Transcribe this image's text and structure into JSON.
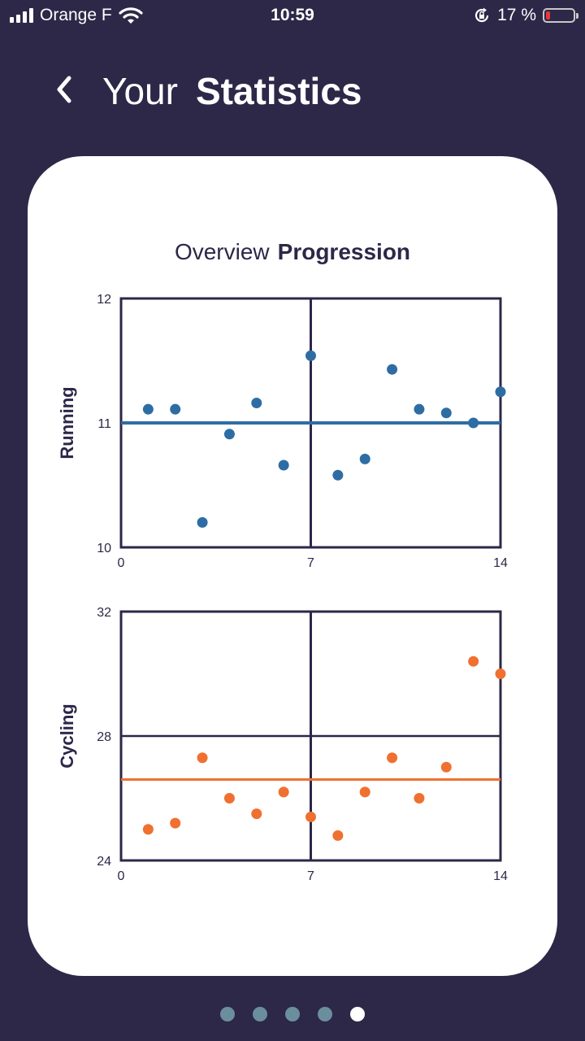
{
  "status_bar": {
    "carrier": "Orange F",
    "time": "10:59",
    "battery": "17 %",
    "battery_level": 0.17,
    "battery_color": "#e53935"
  },
  "header": {
    "title_light": "Your",
    "title_bold": "Statistics"
  },
  "card": {
    "title_light": "Overview",
    "title_bold": "Progression"
  },
  "pager": {
    "count": 5,
    "active_index": 4
  },
  "chart_data": [
    {
      "type": "scatter",
      "ylabel": "Running",
      "color": "#2e6da4",
      "xlim": [
        0,
        14
      ],
      "ylim": [
        10,
        12
      ],
      "xticks": [
        "0",
        "7",
        "14"
      ],
      "yticks": [
        "10",
        "11",
        "12"
      ],
      "reference_line": 11,
      "x": [
        1,
        2,
        3,
        4,
        5,
        6,
        7,
        8,
        9,
        10,
        11,
        12,
        13,
        14
      ],
      "y": [
        11.11,
        11.11,
        10.2,
        10.91,
        11.16,
        10.66,
        11.54,
        10.58,
        10.71,
        11.43,
        11.11,
        11.08,
        11.0,
        11.25
      ]
    },
    {
      "type": "scatter",
      "ylabel": "Cycling",
      "color": "#f07030",
      "xlim": [
        0,
        14
      ],
      "ylim": [
        24,
        32
      ],
      "xticks": [
        "0",
        "7",
        "14"
      ],
      "yticks": [
        "24",
        "28",
        "32"
      ],
      "reference_line": 26.6,
      "x": [
        1,
        2,
        3,
        4,
        5,
        6,
        7,
        8,
        9,
        10,
        11,
        12,
        13,
        14
      ],
      "y": [
        25.0,
        25.2,
        27.3,
        26.0,
        25.5,
        26.2,
        25.4,
        24.8,
        26.2,
        27.3,
        26.0,
        27.0,
        30.4,
        30.0
      ]
    }
  ]
}
